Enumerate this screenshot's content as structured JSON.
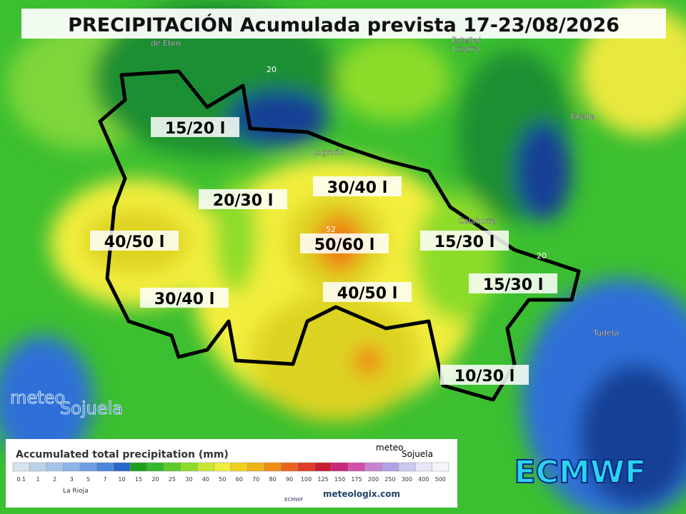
{
  "header": {
    "title": "PRECIPITACIÓN Acumulada prevista 17-23/08/2026"
  },
  "areas": [
    {
      "label": "15/20 l"
    },
    {
      "label": "20/30 l"
    },
    {
      "label": "30/40 l"
    },
    {
      "label": "40/50 l"
    },
    {
      "label": "50/60 l"
    },
    {
      "label": "15/30 l"
    },
    {
      "label": "15/30 l"
    },
    {
      "label": "30/40 l"
    },
    {
      "label": "40/50 l"
    },
    {
      "label": "10/30 l"
    }
  ],
  "places": [
    {
      "lines": [
        "de Ebro"
      ]
    },
    {
      "lines": [
        "Estella/",
        "Lizarra"
      ]
    },
    {
      "lines": [
        "Tafalla"
      ]
    },
    {
      "lines": [
        "Logroño"
      ]
    },
    {
      "lines": [
        "Calahorra"
      ]
    },
    {
      "lines": [
        "Tudela"
      ]
    }
  ],
  "contours": [
    "20",
    "52",
    "20"
  ],
  "watermark": {
    "brand": "meteo",
    "name": "Sojuela"
  },
  "legend": {
    "title": "Accumulated total precipitation (mm)",
    "ticks": [
      0.1,
      1,
      2,
      3,
      5,
      7,
      10,
      15,
      20,
      25,
      30,
      40,
      50,
      60,
      70,
      80,
      90,
      100,
      125,
      150,
      175,
      200,
      250,
      300,
      400,
      500
    ],
    "colors": [
      "#d6e2ee",
      "#bcd2ea",
      "#a6c4ea",
      "#8cb4e8",
      "#6e9ee2",
      "#4c84da",
      "#2a66c8",
      "#1ea01e",
      "#34b82c",
      "#5ccc2a",
      "#8cdc2a",
      "#c8e632",
      "#f0ee3c",
      "#f0d21e",
      "#f0b41a",
      "#f08c14",
      "#e8641a",
      "#e03c28",
      "#c81e32",
      "#c8287a",
      "#d250aa",
      "#c882d2",
      "#b4a0e6",
      "#c8c8f0",
      "#e6e6f8",
      "#f4f4fc"
    ],
    "region": "La Rioja",
    "model": "ECMWF",
    "source": "meteologix.com",
    "brand": "meteo",
    "name": "Sojuela"
  },
  "model_logo": "ECMWF"
}
